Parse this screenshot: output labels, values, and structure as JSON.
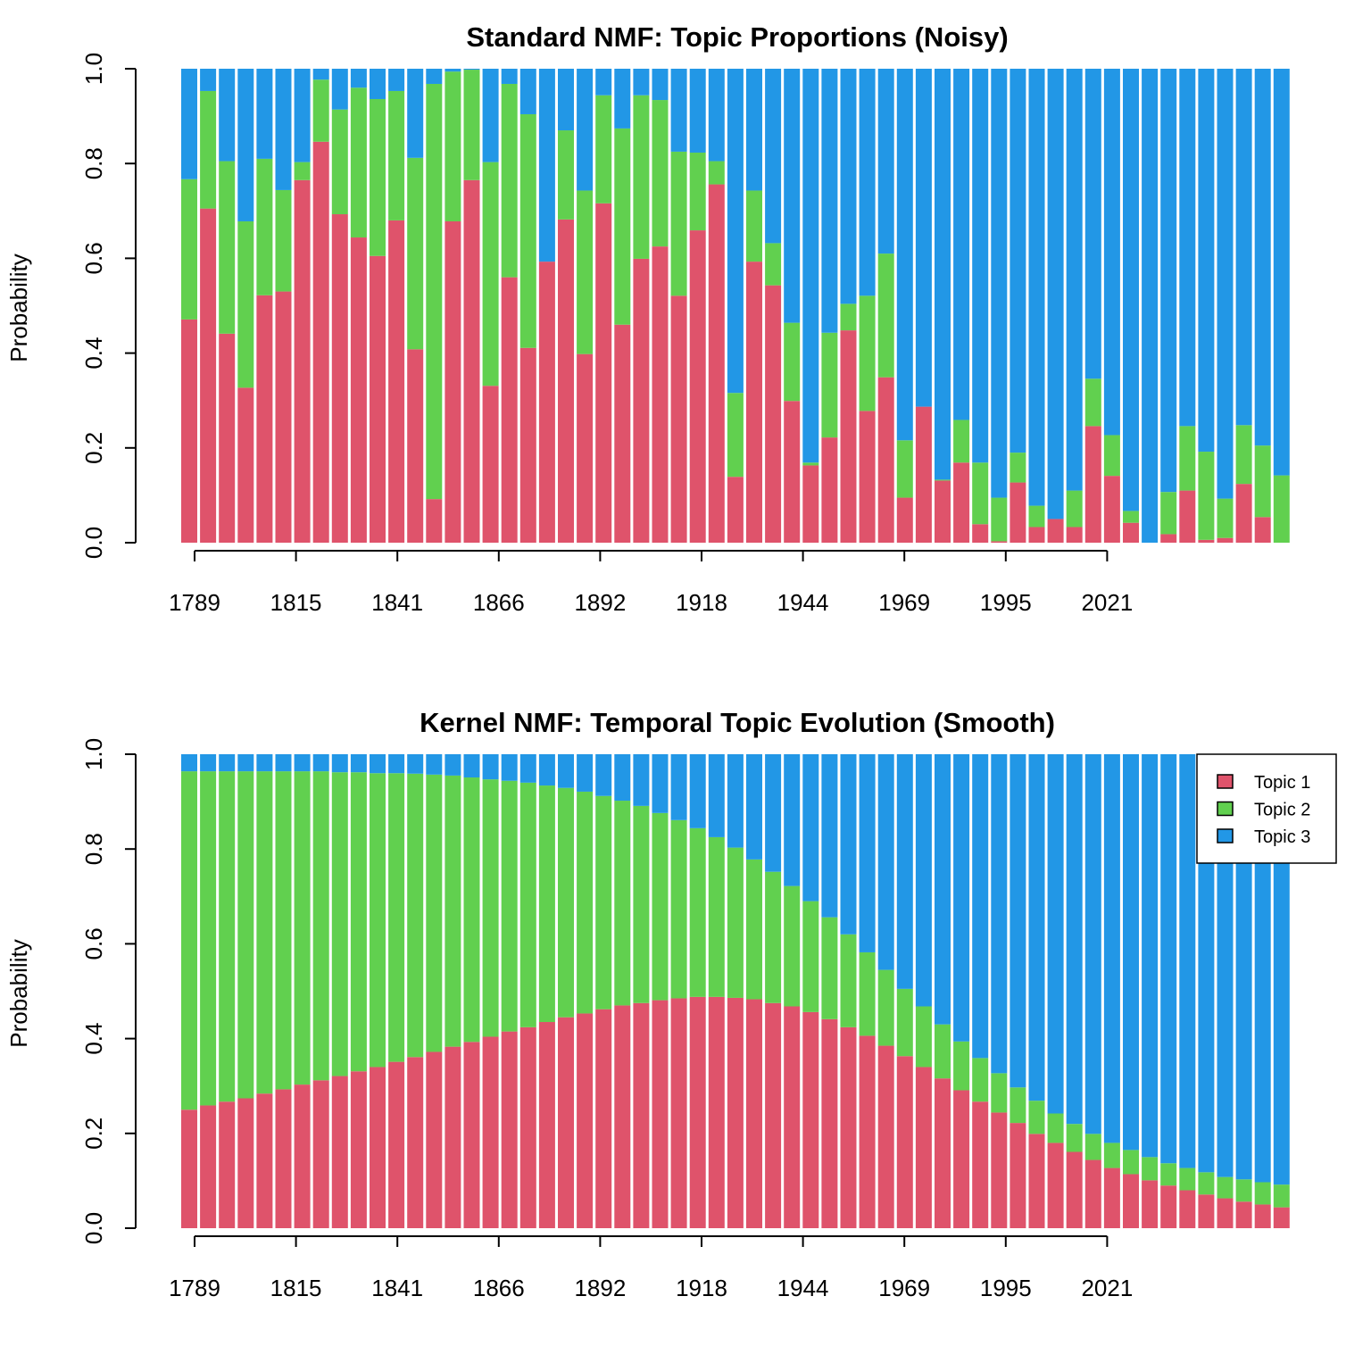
{
  "colors": {
    "topic1": "#DF536B",
    "topic2": "#61D04F",
    "topic3": "#2297E6"
  },
  "chart_data": [
    {
      "type": "bar",
      "stacked": true,
      "title": "Standard NMF: Topic Proportions (Noisy)",
      "xlabel": "",
      "ylabel": "Probability",
      "ylim": [
        0,
        1
      ],
      "yticks": [
        "0.0",
        "0.2",
        "0.4",
        "0.6",
        "0.8",
        "1.0"
      ],
      "xticks": [
        "1789",
        "1815",
        "1841",
        "1866",
        "1892",
        "1918",
        "1944",
        "1969",
        "1995",
        "2021"
      ],
      "legend": null,
      "series": [
        {
          "name": "Topic 1",
          "values": [
            0.471,
            0.705,
            0.441,
            0.327,
            0.522,
            0.53,
            0.765,
            0.846,
            0.693,
            0.644,
            0.605,
            0.68,
            0.408,
            0.092,
            0.678,
            0.765,
            0.331,
            0.56,
            0.411,
            0.593,
            0.682,
            0.398,
            0.716,
            0.46,
            0.599,
            0.625,
            0.521,
            0.659,
            0.756,
            0.139,
            0.593,
            0.543,
            0.299,
            0.163,
            0.222,
            0.448,
            0.278,
            0.349,
            0.095,
            0.287,
            0.131,
            0.169,
            0.039,
            0.003,
            0.127,
            0.033,
            0.05,
            0.033,
            0.246,
            0.141,
            0.042,
            0.0,
            0.018,
            0.11,
            0.006,
            0.01,
            0.124,
            0.054,
            0.0
          ]
        },
        {
          "name": "Topic 2",
          "values": [
            0.296,
            0.248,
            0.364,
            0.351,
            0.288,
            0.214,
            0.038,
            0.131,
            0.221,
            0.316,
            0.331,
            0.273,
            0.404,
            0.876,
            0.316,
            0.233,
            0.472,
            0.408,
            0.493,
            0.0,
            0.188,
            0.345,
            0.228,
            0.414,
            0.345,
            0.309,
            0.304,
            0.164,
            0.049,
            0.177,
            0.15,
            0.089,
            0.165,
            0.006,
            0.221,
            0.056,
            0.243,
            0.261,
            0.121,
            0.0,
            0.002,
            0.09,
            0.13,
            0.092,
            0.063,
            0.045,
            0.0,
            0.077,
            0.1,
            0.086,
            0.025,
            0.0,
            0.089,
            0.136,
            0.186,
            0.083,
            0.124,
            0.151,
            0.142
          ]
        },
        {
          "name": "Topic 3",
          "values": [
            0.233,
            0.047,
            0.195,
            0.322,
            0.19,
            0.256,
            0.197,
            0.023,
            0.086,
            0.04,
            0.064,
            0.047,
            0.188,
            0.032,
            0.006,
            0.002,
            0.197,
            0.032,
            0.096,
            0.407,
            0.13,
            0.257,
            0.056,
            0.126,
            0.056,
            0.066,
            0.175,
            0.177,
            0.195,
            0.684,
            0.257,
            0.368,
            0.536,
            0.831,
            0.557,
            0.496,
            0.479,
            0.39,
            0.784,
            0.713,
            0.867,
            0.741,
            0.831,
            0.905,
            0.81,
            0.922,
            0.95,
            0.89,
            0.654,
            0.773,
            0.933,
            1.0,
            0.893,
            0.754,
            0.808,
            0.907,
            0.752,
            0.795,
            0.858
          ]
        }
      ]
    },
    {
      "type": "bar",
      "stacked": true,
      "title": "Kernel NMF: Temporal Topic Evolution (Smooth)",
      "xlabel": "",
      "ylabel": "Probability",
      "ylim": [
        0,
        1
      ],
      "yticks": [
        "0.0",
        "0.2",
        "0.4",
        "0.6",
        "0.8",
        "1.0"
      ],
      "xticks": [
        "1789",
        "1815",
        "1841",
        "1866",
        "1892",
        "1918",
        "1944",
        "1969",
        "1995",
        "2021"
      ],
      "legend": {
        "position": "top-right",
        "entries": [
          "Topic 1",
          "Topic 2",
          "Topic 3"
        ]
      },
      "series": [
        {
          "name": "Topic 1",
          "values": [
            0.25,
            0.259,
            0.267,
            0.274,
            0.284,
            0.293,
            0.303,
            0.312,
            0.321,
            0.331,
            0.34,
            0.351,
            0.361,
            0.372,
            0.383,
            0.393,
            0.404,
            0.415,
            0.424,
            0.435,
            0.445,
            0.453,
            0.462,
            0.47,
            0.475,
            0.481,
            0.485,
            0.488,
            0.488,
            0.486,
            0.483,
            0.475,
            0.468,
            0.456,
            0.441,
            0.424,
            0.406,
            0.385,
            0.363,
            0.34,
            0.316,
            0.291,
            0.267,
            0.244,
            0.222,
            0.199,
            0.18,
            0.161,
            0.144,
            0.127,
            0.114,
            0.101,
            0.09,
            0.08,
            0.071,
            0.063,
            0.056,
            0.05,
            0.044
          ]
        },
        {
          "name": "Topic 2",
          "values": [
            0.714,
            0.705,
            0.697,
            0.69,
            0.68,
            0.671,
            0.661,
            0.652,
            0.641,
            0.631,
            0.62,
            0.609,
            0.598,
            0.585,
            0.572,
            0.558,
            0.543,
            0.529,
            0.516,
            0.499,
            0.484,
            0.468,
            0.45,
            0.432,
            0.416,
            0.395,
            0.376,
            0.356,
            0.337,
            0.317,
            0.295,
            0.277,
            0.254,
            0.234,
            0.215,
            0.196,
            0.176,
            0.16,
            0.142,
            0.128,
            0.114,
            0.103,
            0.092,
            0.083,
            0.075,
            0.07,
            0.062,
            0.059,
            0.055,
            0.053,
            0.051,
            0.049,
            0.047,
            0.047,
            0.047,
            0.045,
            0.047,
            0.047,
            0.048
          ]
        },
        {
          "name": "Topic 3",
          "values": [
            0.036,
            0.036,
            0.036,
            0.036,
            0.036,
            0.036,
            0.036,
            0.036,
            0.038,
            0.038,
            0.04,
            0.04,
            0.041,
            0.043,
            0.045,
            0.049,
            0.053,
            0.056,
            0.06,
            0.066,
            0.071,
            0.079,
            0.088,
            0.098,
            0.109,
            0.124,
            0.139,
            0.156,
            0.175,
            0.197,
            0.222,
            0.248,
            0.278,
            0.31,
            0.344,
            0.38,
            0.418,
            0.455,
            0.495,
            0.532,
            0.57,
            0.606,
            0.641,
            0.673,
            0.703,
            0.731,
            0.758,
            0.78,
            0.801,
            0.82,
            0.835,
            0.85,
            0.863,
            0.873,
            0.882,
            0.892,
            0.897,
            0.903,
            0.908
          ]
        }
      ]
    }
  ]
}
